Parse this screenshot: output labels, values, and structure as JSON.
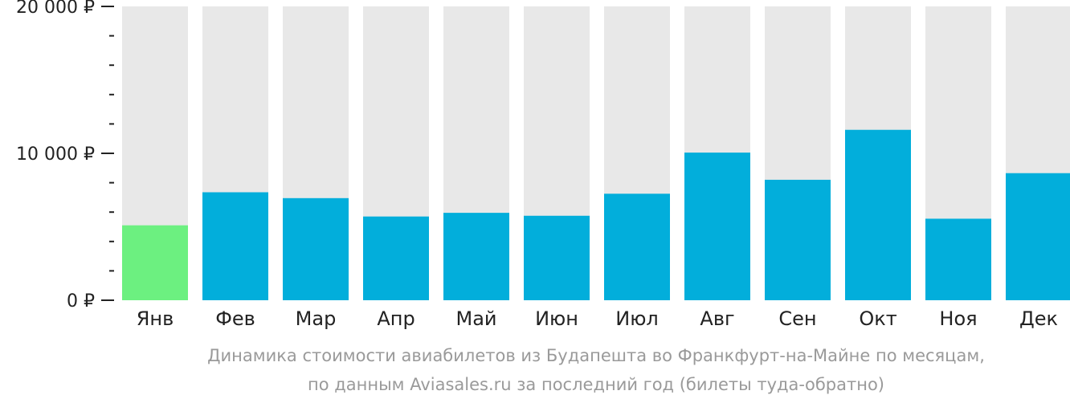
{
  "chart_data": {
    "type": "bar",
    "categories": [
      "Янв",
      "Фев",
      "Мар",
      "Апр",
      "Май",
      "Июн",
      "Июл",
      "Авг",
      "Сен",
      "Окт",
      "Ноя",
      "Дек"
    ],
    "values": [
      5100,
      7350,
      6950,
      5700,
      5950,
      5750,
      7250,
      10050,
      8200,
      11600,
      5550,
      8650
    ],
    "ylim": [
      0,
      20000
    ],
    "y_ticks": [
      {
        "value": 0,
        "label": "0 ₽"
      },
      {
        "value": 10000,
        "label": "10 000 ₽"
      },
      {
        "value": 20000,
        "label": "20 000 ₽"
      }
    ],
    "minor_tick_step": 2000,
    "highlight_index": 0,
    "colors": {
      "bar": "#02AEDB",
      "highlight": "#6CF080",
      "track": "#E8E8E8",
      "axis": "#222222",
      "caption": "#9A9A9A"
    },
    "caption_line1": "Динамика стоимости авиабилетов из Будапешта во Франкфурт-на-Майне по месяцам,",
    "caption_line2": "по данным Aviasales.ru за последний год (билеты туда-обратно)"
  }
}
